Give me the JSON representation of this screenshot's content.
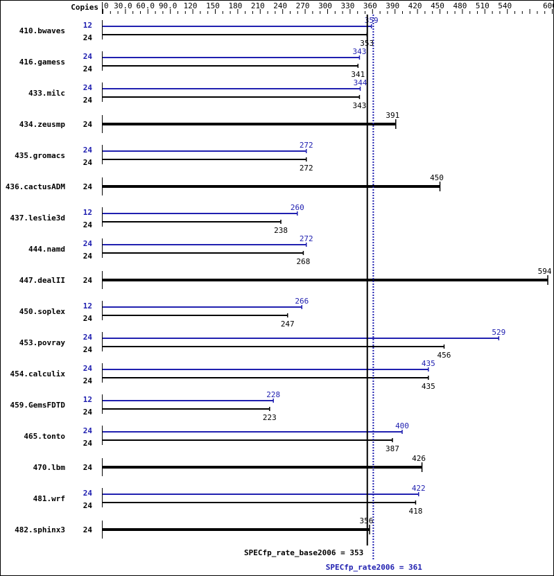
{
  "chart_data": {
    "type": "bar",
    "orientation": "horizontal",
    "axis_header": "Copies",
    "xlim": [
      0,
      600
    ],
    "x_ticks": [
      "0",
      "30.0",
      "60.0",
      "90.0",
      "120",
      "150",
      "180",
      "210",
      "240",
      "270",
      "300",
      "330",
      "360",
      "390",
      "420",
      "450",
      "480",
      "510",
      "540",
      "600"
    ],
    "x_tick_values": [
      0,
      30,
      60,
      90,
      120,
      150,
      180,
      210,
      240,
      270,
      300,
      330,
      360,
      390,
      420,
      450,
      480,
      510,
      540,
      600
    ],
    "colors": {
      "peak": "#2020b0",
      "base": "#000000"
    },
    "benchmarks": [
      {
        "name": "410.bwaves",
        "peak_copies": "12",
        "peak": 359,
        "base_copies": "24",
        "base": 353
      },
      {
        "name": "416.gamess",
        "peak_copies": "24",
        "peak": 343,
        "base_copies": "24",
        "base": 341
      },
      {
        "name": "433.milc",
        "peak_copies": "24",
        "peak": 344,
        "base_copies": "24",
        "base": 343
      },
      {
        "name": "434.zeusmp",
        "base_copies": "24",
        "base": 391
      },
      {
        "name": "435.gromacs",
        "peak_copies": "24",
        "peak": 272,
        "base_copies": "24",
        "base": 272
      },
      {
        "name": "436.cactusADM",
        "base_copies": "24",
        "base": 450
      },
      {
        "name": "437.leslie3d",
        "peak_copies": "12",
        "peak": 260,
        "base_copies": "24",
        "base": 238
      },
      {
        "name": "444.namd",
        "peak_copies": "24",
        "peak": 272,
        "base_copies": "24",
        "base": 268
      },
      {
        "name": "447.dealII",
        "base_copies": "24",
        "base": 594
      },
      {
        "name": "450.soplex",
        "peak_copies": "12",
        "peak": 266,
        "base_copies": "24",
        "base": 247
      },
      {
        "name": "453.povray",
        "peak_copies": "24",
        "peak": 529,
        "base_copies": "24",
        "base": 456
      },
      {
        "name": "454.calculix",
        "peak_copies": "24",
        "peak": 435,
        "base_copies": "24",
        "base": 435
      },
      {
        "name": "459.GemsFDTD",
        "peak_copies": "12",
        "peak": 228,
        "base_copies": "24",
        "base": 223
      },
      {
        "name": "465.tonto",
        "peak_copies": "24",
        "peak": 400,
        "base_copies": "24",
        "base": 387
      },
      {
        "name": "470.lbm",
        "base_copies": "24",
        "base": 426
      },
      {
        "name": "481.wrf",
        "peak_copies": "24",
        "peak": 422,
        "base_copies": "24",
        "base": 418
      },
      {
        "name": "482.sphinx3",
        "base_copies": "24",
        "base": 356
      }
    ],
    "reference_lines": [
      {
        "label": "SPECfp_rate_base2006 = 353",
        "value": 353,
        "style": "solid",
        "color": "#000000"
      },
      {
        "label": "SPECfp_rate2006 = 361",
        "value": 361,
        "style": "dotted",
        "color": "#2020b0"
      }
    ]
  }
}
